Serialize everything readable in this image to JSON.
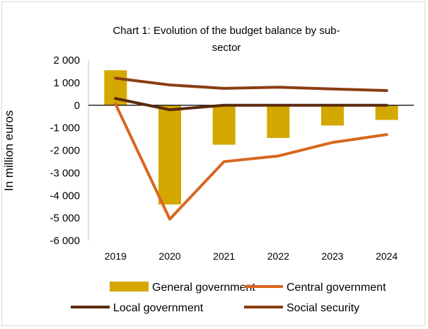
{
  "chart_data": {
    "type": "bar+line",
    "title_line1": "Chart 1: Evolution of the budget balance by sub-",
    "title_line2": "sector",
    "ylabel": "In million euros",
    "xlabel": "",
    "categories": [
      "2019",
      "2020",
      "2021",
      "2022",
      "2023",
      "2024"
    ],
    "y_ticks": [
      2000,
      1000,
      0,
      -1000,
      -2000,
      -3000,
      -4000,
      -5000,
      -6000
    ],
    "y_tick_labels": [
      "2 000",
      "1 000",
      "0",
      "-1 000",
      "-2 000",
      "-3 000",
      "-4 000",
      "-5 000",
      "-6 000"
    ],
    "ylim": [
      -6000,
      2000
    ],
    "grid": false,
    "legend_position": "bottom",
    "series": [
      {
        "name": "General government",
        "kind": "bar",
        "color": "#d4a800",
        "values": [
          1550,
          -4400,
          -1750,
          -1450,
          -900,
          -650
        ]
      },
      {
        "name": "Central government",
        "kind": "line",
        "color": "#d9671e",
        "values": [
          50,
          -5050,
          -2500,
          -2250,
          -1650,
          -1300
        ]
      },
      {
        "name": "Local government",
        "kind": "line",
        "color": "#5c2a0f",
        "values": [
          300,
          -200,
          0,
          0,
          0,
          0
        ]
      },
      {
        "name": "Social security",
        "kind": "line",
        "color": "#8b3d14",
        "values": [
          1200,
          900,
          750,
          800,
          720,
          650
        ]
      }
    ]
  }
}
